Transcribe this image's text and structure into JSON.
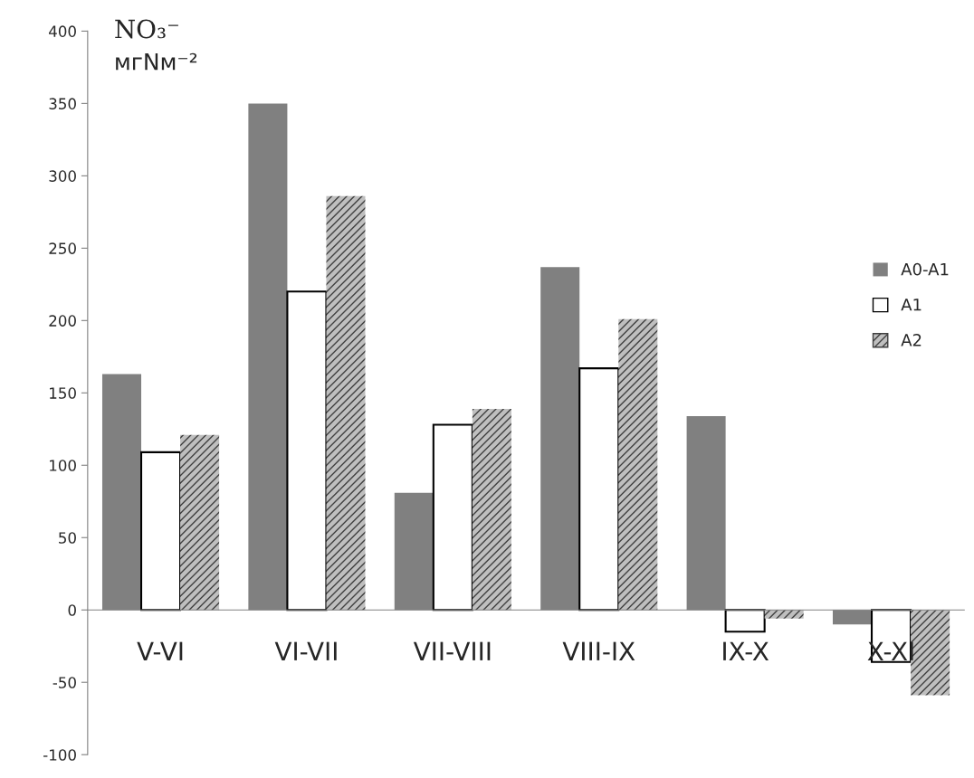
{
  "chart_data": {
    "type": "bar",
    "title": "NO₃⁻",
    "ylabel": "мгNм⁻²",
    "categories": [
      "V-VI",
      "VI-VII",
      "VII-VIII",
      "VIII-IX",
      "IX-X",
      "X-XI"
    ],
    "series": [
      {
        "name": "A0-A1",
        "color": "#808080",
        "values": [
          163,
          350,
          81,
          237,
          134,
          -10
        ]
      },
      {
        "name": "A1",
        "color": "#ffffff",
        "values": [
          109,
          220,
          128,
          167,
          -15,
          -36
        ]
      },
      {
        "name": "A2",
        "color": "#bfbfbf",
        "values": [
          121,
          286,
          139,
          201,
          -6,
          -59
        ]
      }
    ],
    "ylim": [
      -100,
      400
    ],
    "yticks": [
      -100,
      -50,
      0,
      50,
      100,
      150,
      200,
      250,
      300,
      350,
      400
    ],
    "grid": false,
    "legend": "right"
  }
}
